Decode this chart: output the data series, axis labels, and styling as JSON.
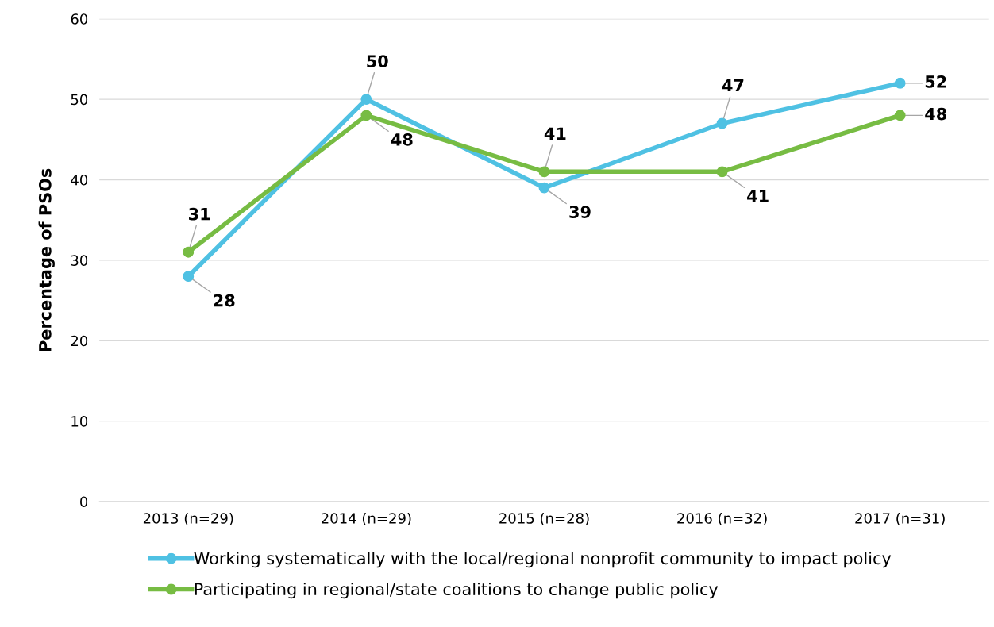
{
  "chart_data": {
    "type": "line",
    "ylabel": "Percentage of PSOs",
    "categories": [
      "2013 (n=29)",
      "2014 (n=29)",
      "2015 (n=28)",
      "2016 (n=32)",
      "2017 (n=31)"
    ],
    "series": [
      {
        "name": "Working systematically with the local/regional nonprofit community to impact policy",
        "color": "#4fc1e3",
        "values": [
          28,
          50,
          39,
          47,
          52
        ]
      },
      {
        "name": "Participating in regional/state coalitions to change public policy",
        "color": "#77bc43",
        "values": [
          31,
          48,
          41,
          41,
          48
        ]
      }
    ],
    "ylim": [
      0,
      60
    ],
    "yticks": [
      0,
      10,
      20,
      30,
      40,
      50,
      60
    ],
    "grid": "y",
    "legend": "bottom",
    "marker": "circle",
    "line_style": "solid",
    "data_labels": true
  }
}
